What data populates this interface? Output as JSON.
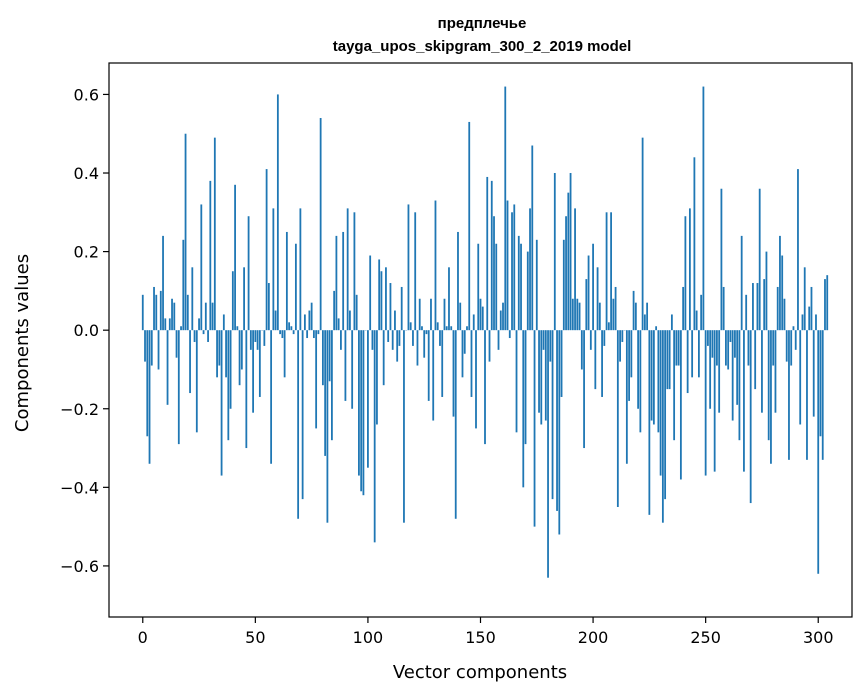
{
  "chart_data": {
    "type": "bar",
    "title": "предплечье",
    "subtitle": "tayga_upos_skipgram_300_2_2019 model",
    "xlabel": "Vector components",
    "ylabel": "Components values",
    "xlim": [
      -15,
      315
    ],
    "ylim": [
      -0.73,
      0.68
    ],
    "xticks": [
      0,
      50,
      100,
      150,
      200,
      250,
      300
    ],
    "xtick_labels": [
      "0",
      "50",
      "100",
      "150",
      "200",
      "250",
      "300"
    ],
    "yticks": [
      -0.6,
      -0.4,
      -0.2,
      0.0,
      0.2,
      0.4,
      0.6
    ],
    "ytick_labels": [
      "−0.6",
      "−0.4",
      "−0.2",
      "0.0",
      "0.2",
      "0.4",
      "0.6"
    ],
    "bar_color": "#1f77b4",
    "grid": false,
    "legend": "none",
    "values": [
      0.09,
      -0.08,
      -0.27,
      -0.34,
      -0.09,
      0.11,
      0.09,
      -0.1,
      0.1,
      0.24,
      0.03,
      -0.19,
      0.03,
      0.08,
      0.07,
      -0.07,
      -0.29,
      0.01,
      0.23,
      0.5,
      0.09,
      -0.16,
      0.16,
      -0.03,
      -0.26,
      0.03,
      0.32,
      -0.01,
      0.07,
      -0.03,
      0.38,
      0.07,
      0.49,
      -0.12,
      -0.09,
      -0.37,
      0.04,
      -0.12,
      -0.28,
      -0.2,
      0.15,
      0.37,
      0.01,
      -0.14,
      -0.1,
      0.16,
      -0.3,
      0.29,
      -0.05,
      -0.21,
      -0.03,
      -0.05,
      -0.17,
      0.0,
      -0.04,
      0.41,
      0.12,
      -0.34,
      0.31,
      0.05,
      0.6,
      -0.01,
      -0.02,
      -0.12,
      0.25,
      0.02,
      0.01,
      -0.01,
      0.22,
      -0.48,
      0.31,
      -0.43,
      0.04,
      -0.02,
      0.05,
      0.07,
      -0.02,
      -0.25,
      -0.01,
      0.54,
      -0.14,
      -0.32,
      -0.49,
      -0.13,
      -0.28,
      0.1,
      0.24,
      0.03,
      -0.05,
      0.25,
      -0.18,
      0.31,
      0.05,
      -0.2,
      0.3,
      0.09,
      -0.37,
      -0.41,
      -0.42,
      0.0,
      -0.35,
      0.19,
      -0.05,
      -0.54,
      -0.24,
      0.18,
      0.15,
      -0.14,
      0.16,
      -0.03,
      0.12,
      -0.05,
      0.05,
      -0.08,
      -0.04,
      0.11,
      -0.49,
      0.0,
      0.32,
      0.02,
      -0.04,
      0.3,
      -0.09,
      0.08,
      0.01,
      -0.07,
      -0.01,
      -0.18,
      0.08,
      -0.23,
      0.33,
      0.02,
      -0.04,
      -0.17,
      0.08,
      0.01,
      0.16,
      0.01,
      -0.22,
      -0.48,
      0.25,
      0.07,
      -0.12,
      -0.06,
      0.01,
      0.53,
      -0.17,
      0.04,
      -0.25,
      0.22,
      0.08,
      0.06,
      -0.29,
      0.39,
      -0.08,
      0.38,
      0.29,
      0.22,
      -0.05,
      0.05,
      0.07,
      0.62,
      0.33,
      -0.02,
      0.3,
      0.32,
      -0.26,
      0.24,
      0.22,
      -0.4,
      -0.29,
      0.2,
      0.31,
      0.47,
      -0.5,
      0.23,
      -0.21,
      -0.24,
      -0.05,
      -0.23,
      -0.63,
      -0.08,
      -0.43,
      0.4,
      -0.46,
      -0.52,
      -0.17,
      0.23,
      0.29,
      0.35,
      0.4,
      0.08,
      0.31,
      0.08,
      0.07,
      -0.1,
      -0.3,
      0.13,
      0.19,
      -0.05,
      0.22,
      -0.15,
      0.16,
      0.07,
      -0.17,
      -0.04,
      0.3,
      0.02,
      0.3,
      0.08,
      0.11,
      -0.45,
      -0.08,
      -0.03,
      0.0,
      -0.34,
      -0.18,
      -0.12,
      0.1,
      0.07,
      -0.2,
      -0.26,
      0.49,
      0.04,
      0.07,
      -0.47,
      -0.23,
      -0.24,
      0.01,
      -0.26,
      -0.37,
      -0.49,
      -0.43,
      -0.15,
      -0.15,
      0.04,
      -0.28,
      -0.09,
      -0.09,
      -0.38,
      0.11,
      0.29,
      -0.16,
      0.31,
      -0.12,
      0.44,
      0.05,
      -0.12,
      0.09,
      0.62,
      -0.37,
      -0.04,
      -0.2,
      -0.07,
      -0.36,
      -0.09,
      -0.21,
      0.36,
      0.11,
      -0.09,
      -0.1,
      -0.03,
      -0.23,
      -0.07,
      -0.19,
      -0.28,
      0.24,
      -0.36,
      0.09,
      -0.09,
      -0.44,
      0.12,
      -0.15,
      0.12,
      0.36,
      -0.21,
      0.13,
      0.2,
      -0.28,
      -0.34,
      -0.09,
      -0.21,
      0.11,
      0.24,
      0.19,
      0.08,
      -0.08,
      -0.33,
      -0.09,
      0.01,
      -0.05,
      0.41,
      -0.24,
      0.04,
      0.16,
      -0.33,
      0.06,
      0.11,
      -0.22,
      0.04,
      -0.62,
      -0.27,
      -0.33,
      0.13,
      0.14
    ]
  }
}
